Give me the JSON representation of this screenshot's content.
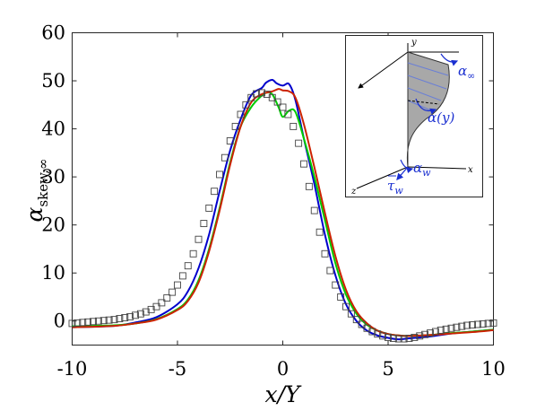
{
  "chart_data": {
    "type": "line",
    "xlabel": "x/Y",
    "ylabel_main": "α",
    "ylabel_sub": "skew,∞",
    "xlim": [
      -10,
      10
    ],
    "ylim": [
      -5,
      60
    ],
    "xticks": [
      "-10",
      "-5",
      "0",
      "5",
      "10"
    ],
    "yticks": [
      "0",
      "10",
      "20",
      "30",
      "40",
      "50",
      "60"
    ],
    "grid": false,
    "series": [
      {
        "color": "#0000cc",
        "x": [
          -10,
          -8,
          -7,
          -6,
          -5,
          -4.5,
          -4,
          -3.5,
          -3,
          -2.5,
          -2,
          -1.5,
          -1,
          -0.8,
          -0.5,
          -0.3,
          0,
          0.3,
          0.6,
          1,
          1.5,
          2,
          2.5,
          3,
          3.5,
          4,
          4.5,
          5,
          5.5,
          6,
          7,
          8,
          9,
          10
        ],
        "y": [
          -1.3,
          -1.0,
          -0.3,
          0.8,
          3.5,
          6.2,
          11,
          18,
          27,
          35.5,
          42,
          47,
          48.5,
          49.6,
          50.2,
          49.5,
          49,
          49.3,
          46,
          38,
          28.5,
          18,
          9.5,
          3.5,
          0,
          -2,
          -3,
          -3.5,
          -3.8,
          -3.6,
          -3.2,
          -2.6,
          -2.2,
          -1.8
        ]
      },
      {
        "color": "#00cc00",
        "x": [
          -10,
          -8,
          -7,
          -6,
          -5,
          -4.5,
          -4,
          -3.5,
          -3,
          -2.5,
          -2,
          -1.5,
          -1.1,
          -0.8,
          -0.5,
          -0.2,
          0,
          0.3,
          0.6,
          1,
          1.5,
          2,
          2.5,
          3,
          3.5,
          4,
          4.5,
          5,
          5.5,
          6,
          7,
          8,
          9,
          10
        ],
        "y": [
          -1.1,
          -0.9,
          -0.5,
          0.4,
          2.5,
          4.5,
          8.5,
          15,
          23.5,
          33,
          40.5,
          44.5,
          46.5,
          47.5,
          47.2,
          44.5,
          42.5,
          43.8,
          43.5,
          38,
          30,
          21,
          12,
          5.5,
          1.5,
          -0.8,
          -2,
          -2.7,
          -3,
          -3.1,
          -2.9,
          -2.5,
          -2.2,
          -1.8
        ]
      },
      {
        "color": "#cc2200",
        "x": [
          -10,
          -8,
          -7,
          -6,
          -5,
          -4.5,
          -4,
          -3.5,
          -3,
          -2.5,
          -2,
          -1.5,
          -1,
          -0.5,
          -0.2,
          0,
          0.3,
          0.6,
          1,
          1.5,
          2,
          2.5,
          3,
          3.5,
          4,
          4.5,
          5,
          5.5,
          6,
          7,
          8,
          9,
          10
        ],
        "y": [
          -1.3,
          -1.0,
          -0.5,
          0.3,
          2.3,
          4.2,
          8,
          14.5,
          23,
          32.5,
          40.5,
          45.5,
          47.2,
          47.8,
          48.3,
          48,
          47.8,
          46.5,
          41,
          32,
          22.5,
          13.5,
          6.5,
          2,
          -0.5,
          -2,
          -2.7,
          -3,
          -3.1,
          -2.9,
          -2.6,
          -2.3,
          -1.9
        ]
      }
    ],
    "markers": {
      "x": [
        -10,
        -9.75,
        -9.5,
        -9.25,
        -9,
        -8.75,
        -8.5,
        -8.25,
        -8,
        -7.75,
        -7.5,
        -7.25,
        -7,
        -6.75,
        -6.5,
        -6.25,
        -6,
        -5.75,
        -5.5,
        -5.25,
        -5,
        -4.75,
        -4.5,
        -4.25,
        -4,
        -3.75,
        -3.5,
        -3.25,
        -3,
        -2.75,
        -2.5,
        -2.25,
        -2,
        -1.75,
        -1.5,
        -1.25,
        -1,
        -0.75,
        -0.5,
        -0.25,
        0,
        0.25,
        0.5,
        0.75,
        1,
        1.25,
        1.5,
        1.75,
        2,
        2.25,
        2.5,
        2.75,
        3,
        3.25,
        3.5,
        3.75,
        4,
        4.25,
        4.5,
        4.75,
        5,
        5.25,
        5.5,
        5.75,
        6,
        6.25,
        6.5,
        6.75,
        7,
        7.25,
        7.5,
        7.75,
        8,
        8.25,
        8.5,
        8.75,
        9,
        9.25,
        9.5,
        9.75,
        10
      ],
      "y": [
        -0.5,
        -0.4,
        -0.3,
        -0.2,
        -0.1,
        0,
        0.1,
        0.2,
        0.3,
        0.5,
        0.7,
        0.9,
        1.2,
        1.5,
        1.9,
        2.4,
        3,
        3.8,
        4.8,
        6,
        7.5,
        9.4,
        11.5,
        14,
        17,
        20.3,
        23.5,
        27,
        30.5,
        34,
        37.5,
        40.5,
        43,
        45,
        46.5,
        47.3,
        47.5,
        47.2,
        46.5,
        45.6,
        44.5,
        43,
        40.5,
        37,
        32.7,
        28,
        23,
        18.5,
        14,
        10.5,
        7.5,
        5,
        3,
        1.5,
        0.3,
        -0.7,
        -1.5,
        -2.2,
        -2.7,
        -3.1,
        -3.4,
        -3.6,
        -3.7,
        -3.7,
        -3.6,
        -3.4,
        -3.1,
        -2.8,
        -2.5,
        -2.2,
        -1.9,
        -1.7,
        -1.5,
        -1.3,
        -1.1,
        -0.9,
        -0.8,
        -0.7,
        -0.6,
        -0.5,
        -0.4
      ]
    }
  },
  "inset": {
    "alpha_inf": "α",
    "alpha_inf_sub": "∞",
    "alpha_y": "α(y)",
    "alpha_w": "α",
    "alpha_w_sub": "w",
    "tau": "τ",
    "tau_sub": "w",
    "axis_x": "x",
    "axis_y": "y",
    "axis_z": "z",
    "accent": "#1a2fd0"
  }
}
